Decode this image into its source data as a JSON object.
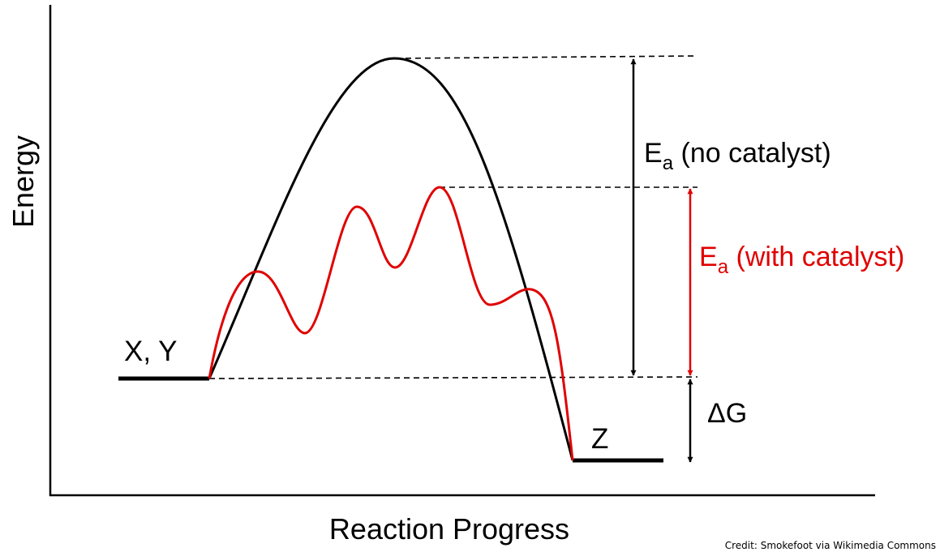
{
  "axes": {
    "x_label": "Reaction Progress",
    "y_label": "Energy"
  },
  "labels": {
    "reactants": "X, Y",
    "product": "Z",
    "ea_symbol": "E",
    "ea_subscript": "a",
    "ea_no_catalyst_suffix": " (no catalyst)",
    "ea_with_catalyst_suffix": " (with catalyst)",
    "delta_g": "ΔG"
  },
  "credit": "Credit: Smokefoot via Wikimedia Commons",
  "colors": {
    "uncatalyzed": "#000000",
    "catalyzed": "#e00000",
    "axis": "#000000"
  }
}
